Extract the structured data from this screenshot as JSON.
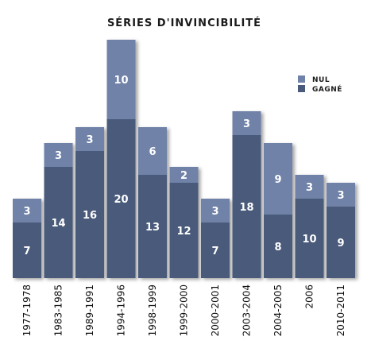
{
  "chart_data": {
    "type": "bar",
    "stacked": true,
    "title": "SÉRIES D'INVINCIBILITÉ",
    "xlabel": "",
    "ylabel": "",
    "ylim": [
      0,
      32
    ],
    "grid": false,
    "legend": "top-right",
    "categories": [
      "1977-1978",
      "1983-1985",
      "1989-1991",
      "1994-1996",
      "1998-1999",
      "1999-2000",
      "2000-2001",
      "2003-2004",
      "2004-2005",
      "2006",
      "2010-2011"
    ],
    "series": [
      {
        "name": "GAGNÉ",
        "color": "#4a5a7a",
        "values": [
          7,
          14,
          16,
          20,
          13,
          12,
          7,
          18,
          8,
          10,
          9
        ]
      },
      {
        "name": "NUL",
        "color": "#6f82a8",
        "values": [
          3,
          3,
          3,
          10,
          6,
          2,
          3,
          3,
          9,
          3,
          3
        ]
      }
    ]
  }
}
